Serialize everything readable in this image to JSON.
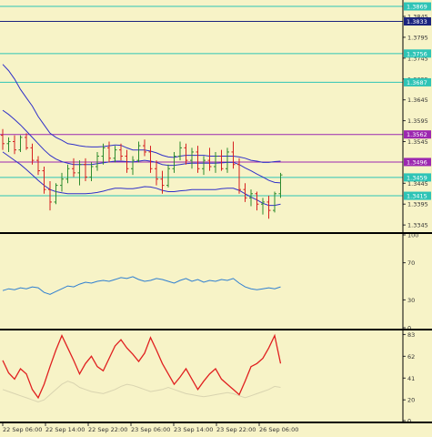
{
  "chart_data": [
    {
      "type": "candlestick",
      "panel": "price",
      "ylim": [
        1.333,
        1.388
      ],
      "y_ticks": [
        1.3345,
        1.3395,
        1.3445,
        1.3545,
        1.3595,
        1.3645,
        1.3695,
        1.3745,
        1.3795,
        1.3845
      ],
      "horizontal_levels": [
        {
          "value": 1.3869,
          "label": "1.3869",
          "color": "#2ec4b6"
        },
        {
          "value": 1.3833,
          "label": "1.3833",
          "color": "#1a237e"
        },
        {
          "value": 1.3756,
          "label": "1.3756",
          "color": "#2ec4b6"
        },
        {
          "value": 1.3687,
          "label": "1.3687",
          "color": "#2ec4b6"
        },
        {
          "value": 1.3562,
          "label": "1.3562",
          "color": "#9c27b0"
        },
        {
          "value": 1.3496,
          "label": "1.3496",
          "color": "#9c27b0"
        },
        {
          "value": 1.3459,
          "label": "1.3459",
          "color": "#2ec4b6"
        },
        {
          "value": 1.3415,
          "label": "1.3415",
          "color": "#2ec4b6"
        }
      ],
      "candles": [
        [
          1.356,
          1.3575,
          1.3525,
          1.354
        ],
        [
          1.354,
          1.3555,
          1.352,
          1.3545
        ],
        [
          1.3545,
          1.356,
          1.3515,
          1.3525
        ],
        [
          1.3525,
          1.356,
          1.352,
          1.3555
        ],
        [
          1.3555,
          1.3565,
          1.3525,
          1.353
        ],
        [
          1.353,
          1.354,
          1.349,
          1.35
        ],
        [
          1.35,
          1.351,
          1.3465,
          1.3475
        ],
        [
          1.3475,
          1.3485,
          1.342,
          1.343
        ],
        [
          1.343,
          1.345,
          1.338,
          1.34
        ],
        [
          1.34,
          1.3445,
          1.3395,
          1.344
        ],
        [
          1.344,
          1.347,
          1.3425,
          1.3455
        ],
        [
          1.3455,
          1.349,
          1.3445,
          1.348
        ],
        [
          1.348,
          1.3505,
          1.346,
          1.347
        ],
        [
          1.347,
          1.35,
          1.344,
          1.349
        ],
        [
          1.349,
          1.3505,
          1.345,
          1.346
        ],
        [
          1.346,
          1.3495,
          1.345,
          1.3485
        ],
        [
          1.3485,
          1.352,
          1.3475,
          1.351
        ],
        [
          1.351,
          1.354,
          1.349,
          1.353
        ],
        [
          1.353,
          1.3545,
          1.3495,
          1.3505
        ],
        [
          1.3505,
          1.3535,
          1.3495,
          1.3525
        ],
        [
          1.3525,
          1.354,
          1.35,
          1.351
        ],
        [
          1.351,
          1.3525,
          1.347,
          1.348
        ],
        [
          1.348,
          1.351,
          1.3465,
          1.35
        ],
        [
          1.35,
          1.3545,
          1.3495,
          1.3535
        ],
        [
          1.3535,
          1.355,
          1.351,
          1.352
        ],
        [
          1.352,
          1.3535,
          1.347,
          1.348
        ],
        [
          1.348,
          1.35,
          1.344,
          1.3455
        ],
        [
          1.3455,
          1.3475,
          1.342,
          1.344
        ],
        [
          1.344,
          1.349,
          1.3435,
          1.348
        ],
        [
          1.348,
          1.352,
          1.347,
          1.351
        ],
        [
          1.351,
          1.3545,
          1.35,
          1.353
        ],
        [
          1.353,
          1.354,
          1.349,
          1.35
        ],
        [
          1.35,
          1.353,
          1.348,
          1.352
        ],
        [
          1.352,
          1.3535,
          1.347,
          1.348
        ],
        [
          1.348,
          1.351,
          1.3465,
          1.35
        ],
        [
          1.35,
          1.353,
          1.3475,
          1.3485
        ],
        [
          1.3485,
          1.352,
          1.347,
          1.351
        ],
        [
          1.351,
          1.3525,
          1.3475,
          1.348
        ],
        [
          1.348,
          1.353,
          1.347,
          1.352
        ],
        [
          1.352,
          1.3545,
          1.348,
          1.349
        ],
        [
          1.349,
          1.3505,
          1.342,
          1.343
        ],
        [
          1.343,
          1.3445,
          1.34,
          1.341
        ],
        [
          1.341,
          1.343,
          1.339,
          1.342
        ],
        [
          1.342,
          1.3425,
          1.338,
          1.3395
        ],
        [
          1.3395,
          1.341,
          1.337,
          1.34
        ],
        [
          1.34,
          1.3415,
          1.336,
          1.338
        ],
        [
          1.338,
          1.3425,
          1.3375,
          1.342
        ],
        [
          1.342,
          1.347,
          1.341,
          1.3465
        ]
      ],
      "bollinger_upper": [
        1.373,
        1.3715,
        1.3695,
        1.367,
        1.365,
        1.363,
        1.3605,
        1.3585,
        1.3565,
        1.3555,
        1.3548,
        1.354,
        1.3538,
        1.3535,
        1.3533,
        1.3532,
        1.3532,
        1.3533,
        1.3535,
        1.3537,
        1.3536,
        1.353,
        1.3525,
        1.3525,
        1.3525,
        1.3522,
        1.3518,
        1.3512,
        1.3508,
        1.3507,
        1.351,
        1.3512,
        1.3512,
        1.3512,
        1.3512,
        1.351,
        1.351,
        1.351,
        1.351,
        1.351,
        1.3508,
        1.3505,
        1.35,
        1.3498,
        1.3495,
        1.3495,
        1.3497,
        1.3498
      ],
      "bollinger_middle": [
        1.362,
        1.361,
        1.3598,
        1.3585,
        1.357,
        1.3555,
        1.354,
        1.3525,
        1.3512,
        1.3503,
        1.3497,
        1.3493,
        1.349,
        1.349,
        1.349,
        1.349,
        1.3492,
        1.3494,
        1.3496,
        1.3498,
        1.3498,
        1.3497,
        1.3496,
        1.3498,
        1.35,
        1.3498,
        1.3495,
        1.349,
        1.3488,
        1.3488,
        1.349,
        1.3492,
        1.3493,
        1.3493,
        1.3493,
        1.3493,
        1.3493,
        1.3494,
        1.3495,
        1.3495,
        1.349,
        1.3482,
        1.3475,
        1.3467,
        1.346,
        1.3452,
        1.3447,
        1.3446
      ],
      "bollinger_lower": [
        1.352,
        1.351,
        1.35,
        1.349,
        1.3478,
        1.3465,
        1.3452,
        1.344,
        1.343,
        1.3425,
        1.3422,
        1.342,
        1.342,
        1.342,
        1.342,
        1.3421,
        1.3423,
        1.3426,
        1.343,
        1.3433,
        1.3433,
        1.3432,
        1.3432,
        1.3434,
        1.3437,
        1.3436,
        1.3433,
        1.3428,
        1.3425,
        1.3425,
        1.3427,
        1.3428,
        1.343,
        1.343,
        1.343,
        1.343,
        1.343,
        1.3432,
        1.3433,
        1.3433,
        1.3428,
        1.342,
        1.3412,
        1.3405,
        1.3397,
        1.3392,
        1.3392,
        1.3395
      ]
    },
    {
      "type": "line",
      "panel": "oscillator",
      "ylim": [
        0,
        100
      ],
      "y_ticks": [
        0,
        30,
        70,
        100
      ],
      "values": [
        40,
        42,
        41,
        43,
        42,
        44,
        43,
        38,
        36,
        39,
        42,
        45,
        44,
        47,
        49,
        48,
        50,
        51,
        50,
        52,
        54,
        53,
        55,
        52,
        50,
        51,
        53,
        52,
        50,
        48,
        51,
        53,
        50,
        52,
        49,
        51,
        50,
        52,
        51,
        53,
        48,
        44,
        42,
        41,
        42,
        43,
        42,
        44
      ]
    },
    {
      "type": "line",
      "panel": "stochastic",
      "ylim": [
        0,
        86
      ],
      "y_ticks": [
        0,
        20,
        41,
        62,
        83
      ],
      "main": [
        58,
        46,
        40,
        50,
        45,
        30,
        22,
        35,
        52,
        68,
        82,
        70,
        58,
        45,
        55,
        62,
        52,
        48,
        60,
        72,
        78,
        70,
        64,
        57,
        65,
        80,
        68,
        55,
        45,
        35,
        42,
        50,
        40,
        30,
        38,
        45,
        50,
        40,
        35,
        30,
        25,
        38,
        52,
        55,
        60,
        70,
        82,
        55
      ],
      "signal": [
        30,
        28,
        26,
        24,
        22,
        20,
        18,
        20,
        25,
        30,
        35,
        38,
        36,
        32,
        30,
        28,
        27,
        26,
        28,
        30,
        33,
        35,
        34,
        32,
        30,
        28,
        29,
        30,
        32,
        30,
        28,
        26,
        25,
        24,
        23,
        24,
        25,
        26,
        27,
        26,
        24,
        22,
        24,
        26,
        28,
        30,
        33,
        32
      ]
    },
    {
      "type": "axis",
      "panel": "time",
      "x_tick_labels": [
        "22 Sep 06:00",
        "22 Sep 14:00",
        "22 Sep 22:00",
        "23 Sep 06:00",
        "23 Sep 14:00",
        "23 Sep 22:00",
        "26 Sep 06:00"
      ]
    }
  ],
  "colors": {
    "background": "#f7f3c7",
    "bull": "#2e8b2e",
    "bear": "#d62020",
    "band": "#3030c8",
    "oscillator": "#2f7fd1",
    "stoch_main": "#e02020",
    "stoch_signal": "#d9d4b0",
    "separator": "#000000"
  }
}
